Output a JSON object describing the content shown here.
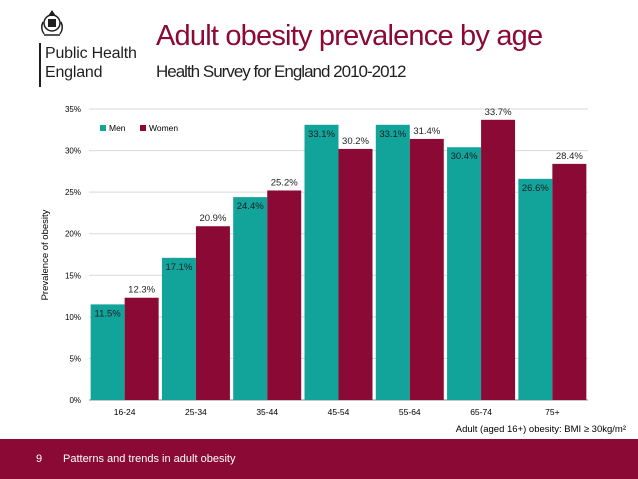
{
  "header": {
    "logo_line1": "Public Health",
    "logo_line2": "England",
    "title": "Adult obesity prevalence by age",
    "subtitle": "Health Survey for England 2010-2012"
  },
  "footer": {
    "slide_number": "9",
    "text": "Patterns and trends in adult obesity"
  },
  "colors": {
    "brand": "#8b0a35",
    "men": "#12a39b",
    "women": "#8b0a35"
  },
  "chart_data": {
    "type": "bar",
    "title": "",
    "xlabel": "Adult (aged 16+) obesity: BMI ≥ 30kg/m²",
    "ylabel": "Prevalence of obesity",
    "categories": [
      "16-24",
      "25-34",
      "35-44",
      "45-54",
      "55-64",
      "65-74",
      "75+"
    ],
    "series": [
      {
        "name": "Men",
        "color": "#12a39b",
        "values": [
          11.5,
          17.1,
          24.4,
          33.1,
          33.1,
          30.4,
          26.6
        ]
      },
      {
        "name": "Women",
        "color": "#8b0a35",
        "values": [
          12.3,
          20.9,
          25.2,
          30.2,
          31.4,
          33.7,
          28.4
        ]
      }
    ],
    "ylim": [
      0,
      35
    ],
    "yticks": [
      "0%",
      "5%",
      "10%",
      "15%",
      "20%",
      "25%",
      "30%",
      "35%"
    ],
    "data_labels": [
      [
        "11.5%",
        "17.1%",
        "24.4%",
        "33.1%",
        "33.1%",
        "30.4%",
        "26.6%"
      ],
      [
        "12.3%",
        "20.9%",
        "25.2%",
        "30.2%",
        "31.4%",
        "33.7%",
        "28.4%"
      ]
    ],
    "grid": true,
    "legend": "top-left"
  }
}
